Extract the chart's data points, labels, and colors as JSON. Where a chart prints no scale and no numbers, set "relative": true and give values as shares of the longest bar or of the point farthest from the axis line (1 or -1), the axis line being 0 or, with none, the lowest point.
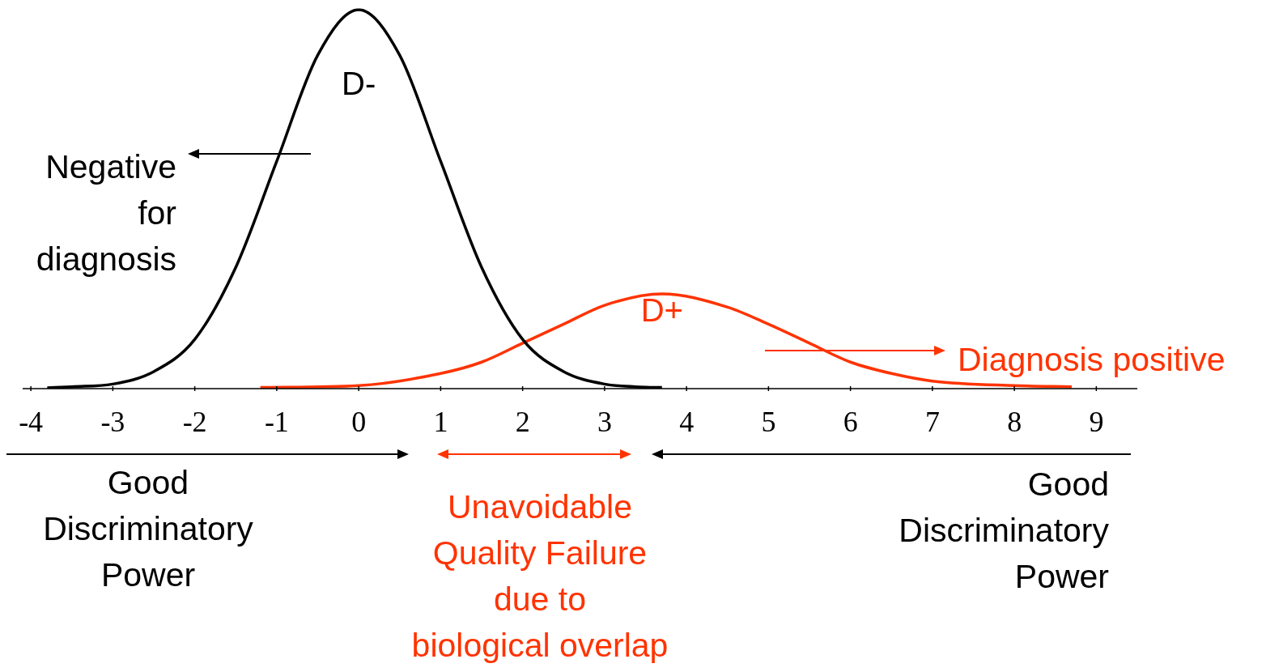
{
  "chart_data": {
    "type": "line",
    "relative": true,
    "legend": false,
    "grid": false,
    "marker": "none",
    "line_style": "solid",
    "xlim": [
      -4.1,
      9.5
    ],
    "xticks": [
      -4,
      -3,
      -2,
      -1,
      0,
      1,
      2,
      3,
      4,
      5,
      6,
      7,
      8,
      9
    ],
    "series": [
      {
        "name": "D-",
        "color": "#000000",
        "x": [
          -3.8,
          -3.5,
          -3,
          -2.5,
          -2,
          -1.5,
          -1,
          -0.5,
          0,
          0.5,
          1,
          1.5,
          2,
          2.5,
          3,
          3.5,
          3.7
        ],
        "values": [
          0.002,
          0.005,
          0.012,
          0.045,
          0.13,
          0.32,
          0.6,
          0.88,
          1,
          0.88,
          0.6,
          0.32,
          0.13,
          0.045,
          0.012,
          0.004,
          0.003
        ]
      },
      {
        "name": "D+",
        "color": "#ff3300",
        "x": [
          -1.2,
          0,
          1,
          1.5,
          2,
          2.5,
          3,
          3.7,
          4.5,
          5,
          5.5,
          6,
          6.5,
          7,
          8,
          8.7
        ],
        "values": [
          0.003,
          0.008,
          0.04,
          0.07,
          0.12,
          0.17,
          0.22,
          0.25,
          0.215,
          0.17,
          0.12,
          0.07,
          0.04,
          0.02,
          0.008,
          0.005
        ]
      }
    ],
    "annotations": [
      "Negative\nfor\ndiagnosis",
      "Diagnosis positive",
      "Good\nDiscriminatory\nPower",
      "Unavoidable\nQuality Failure\ndue to\nbiological overlap",
      "Good\nDiscriminatory\nPower"
    ]
  }
}
